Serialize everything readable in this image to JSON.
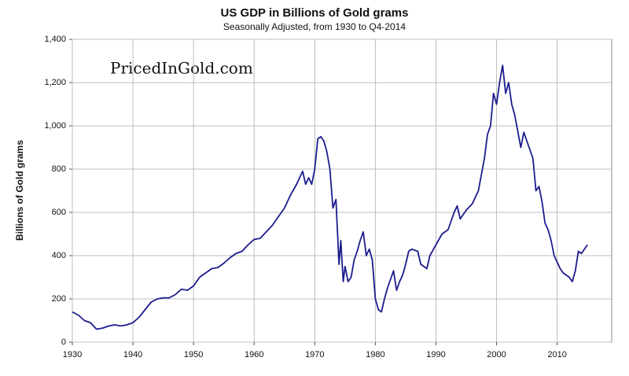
{
  "chart_data": {
    "type": "line",
    "title": "US GDP in Billions of Gold grams",
    "subtitle": "Seasonally Adjusted, from 1930 to Q4-2014",
    "y_label": "Billions of Gold grams",
    "annotation": "PricedInGold.com",
    "x": [
      1930,
      1931,
      1932,
      1933,
      1934,
      1935,
      1936,
      1937,
      1938,
      1939,
      1940,
      1941,
      1942,
      1943,
      1944,
      1945,
      1946,
      1947,
      1948,
      1949,
      1950,
      1951,
      1952,
      1953,
      1954,
      1955,
      1956,
      1957,
      1958,
      1959,
      1960,
      1961,
      1962,
      1963,
      1964,
      1965,
      1966,
      1967,
      1968,
      1968.5,
      1969,
      1969.5,
      1970,
      1970.5,
      1971,
      1971.5,
      1972,
      1972.5,
      1973,
      1973.5,
      1974,
      1974.3,
      1974.7,
      1975,
      1975.5,
      1976,
      1976.5,
      1977,
      1977.5,
      1978,
      1978.5,
      1979,
      1979.5,
      1980,
      1980.5,
      1981,
      1981.5,
      1982,
      1982.5,
      1983,
      1983.5,
      1984,
      1984.5,
      1985,
      1985.5,
      1986,
      1987,
      1987.5,
      1988,
      1988.5,
      1989,
      1990,
      1991,
      1992,
      1993,
      1993.5,
      1994,
      1995,
      1996,
      1997,
      1998,
      1998.5,
      1999,
      1999.5,
      2000,
      2000.5,
      2001,
      2001.5,
      2002,
      2002.5,
      2003,
      2004,
      2004.5,
      2005,
      2006,
      2006.5,
      2007,
      2007.5,
      2008,
      2008.5,
      2009,
      2009.5,
      2010,
      2010.5,
      2011,
      2011.5,
      2012,
      2012.5,
      2013,
      2013.5,
      2014,
      2014.5,
      2015
    ],
    "series": [
      {
        "name": "US GDP",
        "color": "#1c1c8f",
        "values": [
          140,
          125,
          100,
          90,
          60,
          65,
          75,
          80,
          75,
          80,
          90,
          115,
          150,
          185,
          200,
          205,
          205,
          220,
          245,
          240,
          260,
          300,
          320,
          340,
          345,
          365,
          390,
          410,
          420,
          450,
          475,
          480,
          510,
          540,
          580,
          620,
          680,
          730,
          790,
          730,
          760,
          730,
          800,
          940,
          950,
          930,
          880,
          800,
          620,
          660,
          360,
          470,
          280,
          350,
          280,
          300,
          380,
          420,
          470,
          510,
          400,
          430,
          380,
          200,
          150,
          140,
          200,
          250,
          290,
          330,
          240,
          280,
          310,
          360,
          420,
          430,
          420,
          360,
          350,
          340,
          400,
          450,
          500,
          520,
          600,
          630,
          570,
          610,
          640,
          700,
          850,
          960,
          1000,
          1150,
          1100,
          1200,
          1280,
          1150,
          1200,
          1100,
          1050,
          900,
          970,
          930,
          850,
          700,
          720,
          650,
          550,
          520,
          470,
          400,
          370,
          340,
          320,
          310,
          300,
          280,
          330,
          420,
          410,
          430,
          450
        ]
      }
    ],
    "xlim": [
      1930,
      2019
    ],
    "xticks": [
      1930,
      1940,
      1950,
      1960,
      1970,
      1980,
      1990,
      2000,
      2010
    ],
    "ylim": [
      0,
      1400
    ],
    "yticks": [
      0,
      200,
      400,
      600,
      800,
      {
        "value": 1000,
        "label": "1,000"
      },
      {
        "value": 1200,
        "label": "1,200"
      },
      {
        "value": 1400,
        "label": "1,400"
      }
    ],
    "grid": true
  }
}
